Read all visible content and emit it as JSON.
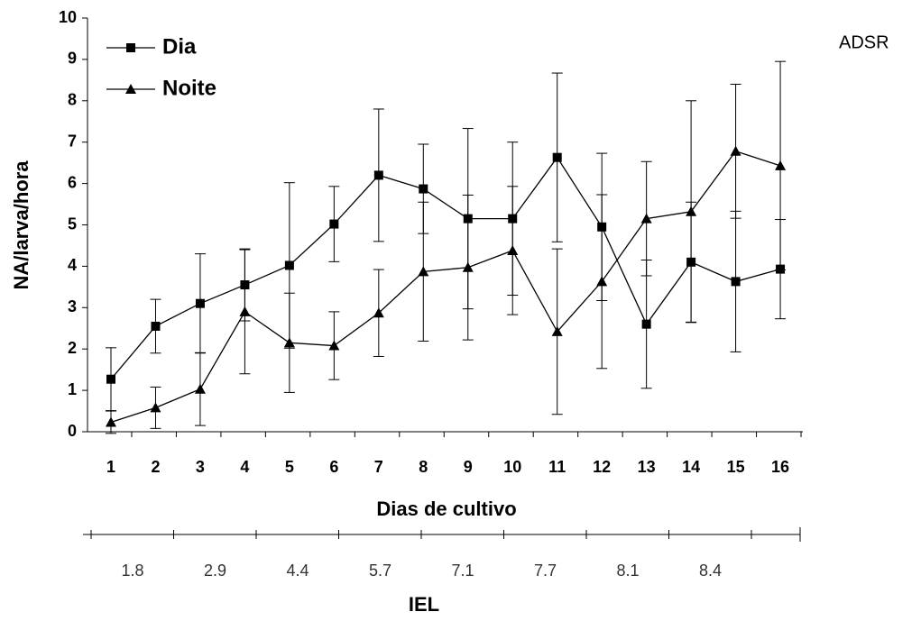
{
  "chart_data": {
    "type": "line",
    "categories": [
      "1",
      "2",
      "3",
      "4",
      "5",
      "6",
      "7",
      "8",
      "9",
      "10",
      "11",
      "12",
      "13",
      "14",
      "15",
      "16"
    ],
    "series": [
      {
        "name": "Dia",
        "color": "#000000",
        "marker": "square",
        "values": [
          1.27,
          2.55,
          3.1,
          3.55,
          4.02,
          5.02,
          6.2,
          5.87,
          5.15,
          5.15,
          6.63,
          4.95,
          2.6,
          4.1,
          3.63,
          3.93
        ],
        "errors": [
          0.76,
          0.65,
          1.2,
          0.87,
          2.0,
          0.91,
          1.6,
          1.08,
          2.18,
          1.85,
          2.04,
          1.78,
          1.55,
          1.45,
          1.7,
          1.2
        ]
      },
      {
        "name": "Noite",
        "color": "#000000",
        "marker": "triangle",
        "values": [
          0.23,
          0.58,
          1.03,
          2.9,
          2.15,
          2.08,
          2.87,
          3.87,
          3.97,
          4.38,
          2.42,
          3.63,
          5.15,
          5.32,
          6.78,
          6.43
        ],
        "errors": [
          0.27,
          0.5,
          0.88,
          1.5,
          1.2,
          0.82,
          1.05,
          1.68,
          1.75,
          1.55,
          2.0,
          2.1,
          1.38,
          2.68,
          1.62,
          2.52
        ]
      }
    ],
    "ylim": [
      0,
      10
    ],
    "yticks": [
      0,
      1,
      2,
      3,
      4,
      5,
      6,
      7,
      8,
      9,
      10
    ],
    "y_label": "NA/larva/hora",
    "x_label": "Dias de cultivo",
    "legend": "upper left",
    "grid": false,
    "annotation": "ADSR",
    "secondary_axis": {
      "label": "IEL",
      "categories": [
        "1.8",
        "2.9",
        "4.4",
        "5.7",
        "7.1",
        "7.7",
        "8.1",
        "8.4"
      ]
    }
  }
}
